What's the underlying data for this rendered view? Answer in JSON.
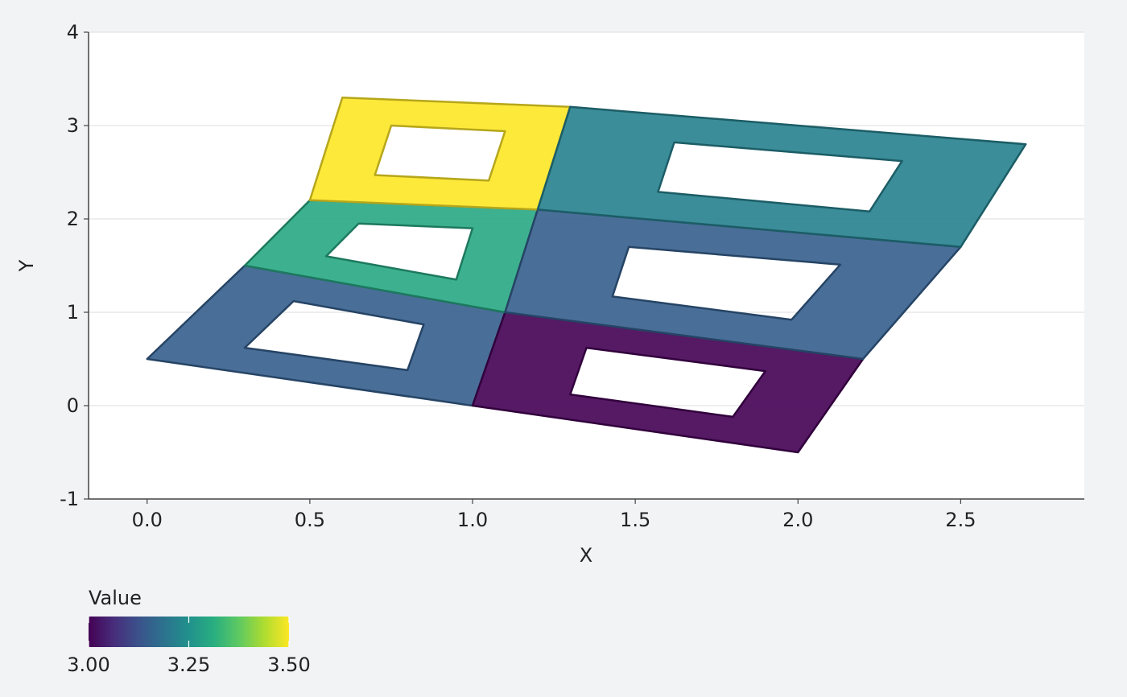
{
  "chart_data": {
    "type": "polygon-map",
    "title": "",
    "xlabel": "X",
    "ylabel": "Y",
    "xlim": [
      -0.18,
      2.88
    ],
    "ylim": [
      -1,
      4
    ],
    "x_ticks": [
      0.0,
      0.5,
      1.0,
      1.5,
      2.0,
      2.5
    ],
    "x_tick_labels": [
      "0.0",
      "0.5",
      "1.0",
      "1.5",
      "2.0",
      "2.5"
    ],
    "y_ticks": [
      -1,
      0,
      1,
      2,
      3,
      4
    ],
    "y_tick_labels": [
      "-1",
      "0",
      "1",
      "2",
      "3",
      "4"
    ],
    "grid": "horizontal",
    "colormap": "viridis",
    "colorbar": {
      "title": "Value",
      "range": [
        3.0,
        3.5
      ],
      "ticks": [
        3.0,
        3.25,
        3.5
      ],
      "tick_labels": [
        "3.00",
        "3.25",
        "3.50"
      ],
      "placement": "bottom-left"
    },
    "polygons": [
      {
        "value": 3.15,
        "outer": [
          [
            0,
            0.5
          ],
          [
            1,
            0
          ],
          [
            1.1,
            1
          ],
          [
            0.3,
            1.5
          ]
        ],
        "hole": [
          [
            0.3,
            0.62
          ],
          [
            0.8,
            0.38
          ],
          [
            0.85,
            0.87
          ],
          [
            0.45,
            1.12
          ]
        ]
      },
      {
        "value": 3.0,
        "outer": [
          [
            1,
            0
          ],
          [
            2,
            -0.5
          ],
          [
            2.2,
            0.5
          ],
          [
            1.1,
            1
          ]
        ],
        "hole": [
          [
            1.3,
            0.12
          ],
          [
            1.8,
            -0.12
          ],
          [
            1.9,
            0.37
          ],
          [
            1.35,
            0.62
          ]
        ]
      },
      {
        "value": 3.3,
        "outer": [
          [
            0.3,
            1.5
          ],
          [
            1.1,
            1
          ],
          [
            1.2,
            2.1
          ],
          [
            0.5,
            2.2
          ]
        ],
        "hole": [
          [
            0.55,
            1.6
          ],
          [
            0.95,
            1.35
          ],
          [
            1.0,
            1.9
          ],
          [
            0.65,
            1.95
          ]
        ]
      },
      {
        "value": 3.15,
        "outer": [
          [
            1.1,
            1
          ],
          [
            2.2,
            0.5
          ],
          [
            2.5,
            1.7
          ],
          [
            1.2,
            2.1
          ]
        ],
        "hole": [
          [
            1.43,
            1.17
          ],
          [
            1.98,
            0.92
          ],
          [
            2.13,
            1.51
          ],
          [
            1.48,
            1.7
          ]
        ]
      },
      {
        "value": 3.5,
        "outer": [
          [
            0.5,
            2.2
          ],
          [
            1.2,
            2.1
          ],
          [
            1.3,
            3.2
          ],
          [
            0.6,
            3.3
          ]
        ],
        "hole": [
          [
            0.7,
            2.47
          ],
          [
            1.05,
            2.41
          ],
          [
            1.1,
            2.94
          ],
          [
            0.75,
            3.0
          ]
        ]
      },
      {
        "value": 3.22,
        "outer": [
          [
            1.2,
            2.1
          ],
          [
            2.5,
            1.7
          ],
          [
            2.7,
            2.8
          ],
          [
            1.3,
            3.2
          ]
        ],
        "hole": [
          [
            1.57,
            2.29
          ],
          [
            2.22,
            2.08
          ],
          [
            2.32,
            2.62
          ],
          [
            1.62,
            2.82
          ]
        ]
      }
    ]
  }
}
